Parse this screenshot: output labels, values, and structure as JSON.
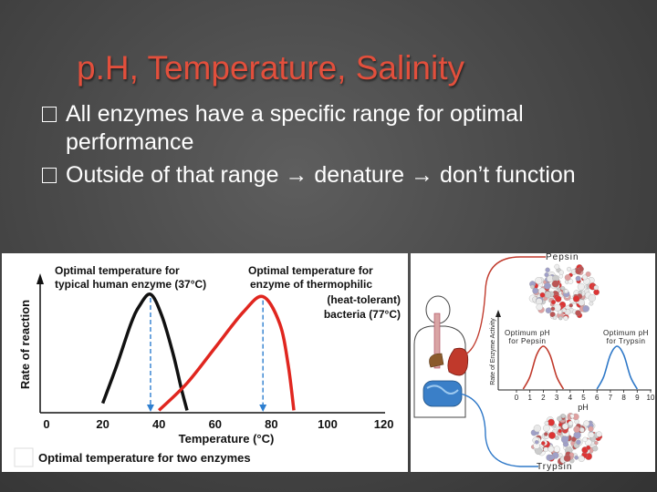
{
  "slide": {
    "title": "p.H, Temperature, Salinity",
    "bullets": [
      "All enzymes have a specific range for optimal performance",
      "Outside of that range → denature → don’t function"
    ]
  },
  "figure_left": {
    "annotation_human": [
      "Optimal temperature for",
      "typical human enzyme (37°C)"
    ],
    "annotation_thermo": [
      "Optimal temperature for",
      "enzyme of thermophilic",
      "(heat-tolerant)",
      "bacteria (77°C)"
    ],
    "ylabel": "Rate of reaction",
    "xlabel": "Temperature (°C)",
    "caption": "Optimal temperature for two enzymes",
    "colors": {
      "human": "#111111",
      "thermophilic": "#e0261f",
      "marker": "#2e7fd0"
    }
  },
  "figure_right": {
    "top_label": "Pepsin",
    "bottom_label": "Trypsin",
    "inset_ylabel": "Rate of Enzyme Activity",
    "inset_xlabel": "pH",
    "optimum_pepsin": [
      "Optimum pH",
      "for Pepsin"
    ],
    "optimum_trypsin": [
      "Optimum pH",
      "for Trypsin"
    ],
    "colors": {
      "pepsin": "#c0392b",
      "trypsin": "#2e78c8"
    }
  },
  "chart_data": [
    {
      "type": "line",
      "title": "Optimal temperature for two enzymes",
      "xlabel": "Temperature (°C)",
      "ylabel": "Rate of reaction",
      "xlim": [
        0,
        125
      ],
      "x_ticks": [
        0,
        20,
        40,
        60,
        80,
        100,
        120
      ],
      "series": [
        {
          "x": [
            20,
            25,
            30,
            33,
            37,
            41,
            45,
            48,
            50
          ],
          "y": [
            0.08,
            0.4,
            0.75,
            0.9,
            1.0,
            0.82,
            0.5,
            0.2,
            0.02
          ]
        },
        {
          "x": [
            40,
            50,
            60,
            70,
            77,
            83,
            86,
            88
          ],
          "y": [
            0.02,
            0.25,
            0.55,
            0.85,
            0.98,
            0.75,
            0.4,
            0.02
          ]
        }
      ],
      "optima": [
        37,
        77
      ]
    },
    {
      "type": "line",
      "xlabel": "pH",
      "ylabel": "Rate of Enzyme Activity",
      "xlim": [
        0,
        10
      ],
      "x_ticks": [
        0,
        1,
        2,
        3,
        4,
        5,
        6,
        7,
        8,
        9,
        10
      ],
      "series": [
        {
          "x": [
            0.5,
            1,
            1.5,
            2,
            2.5,
            3,
            3.5
          ],
          "y": [
            0.02,
            0.3,
            0.8,
            1.0,
            0.8,
            0.3,
            0.02
          ]
        },
        {
          "x": [
            6,
            6.5,
            7,
            7.5,
            8,
            8.5,
            9
          ],
          "y": [
            0.02,
            0.3,
            0.8,
            1.0,
            0.8,
            0.3,
            0.02
          ]
        }
      ]
    }
  ]
}
